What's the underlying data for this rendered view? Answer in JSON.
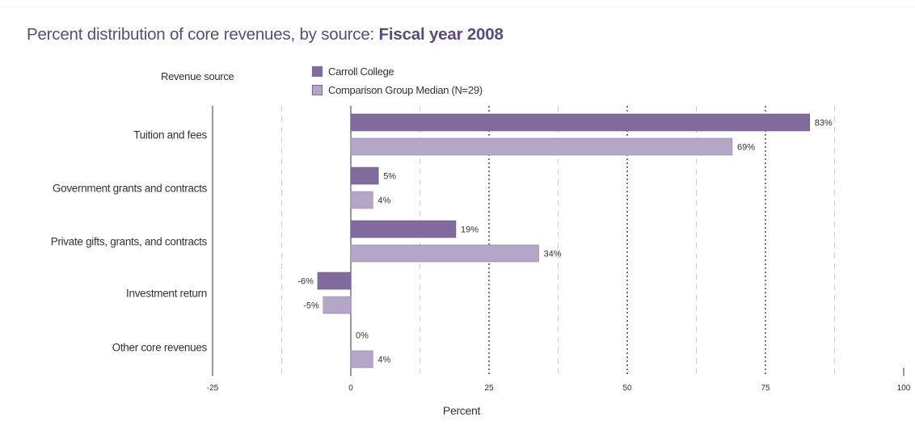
{
  "chart_title_main": "Percent distribution of core revenues, by source: ",
  "chart_title_bold": "Fiscal year 2008",
  "y_axis_header": "Revenue source",
  "colors": {
    "title": "#5b4a80",
    "series_1": "#816b9d",
    "series_2": "#b3a6c6",
    "text": "#333333",
    "grid": "#c8c8c8",
    "axis": "#5b4a80"
  },
  "chart_data": {
    "type": "bar",
    "orientation": "horizontal",
    "title": "Percent distribution of core revenues, by source: Fiscal year 2008",
    "ylabel": "Revenue source",
    "xlabel": "Percent",
    "xlim": [
      -25,
      100
    ],
    "xticks": [
      -25,
      0,
      25,
      50,
      75,
      100
    ],
    "grid": "vertical dashed",
    "legend_position": "top",
    "categories": [
      "Tuition and fees",
      "Government grants and contracts",
      "Private gifts, grants, and contracts",
      "Investment return",
      "Other core revenues"
    ],
    "series": [
      {
        "name": "Carroll College",
        "values": [
          83,
          5,
          19,
          -6,
          0
        ],
        "labels": [
          "83%",
          "5%",
          "19%",
          "-6%",
          "0%"
        ]
      },
      {
        "name": "Comparison Group Median  (N=29)",
        "values": [
          69,
          4,
          34,
          -5,
          4
        ],
        "labels": [
          "69%",
          "4%",
          "34%",
          "-5%",
          "4%"
        ]
      }
    ]
  }
}
